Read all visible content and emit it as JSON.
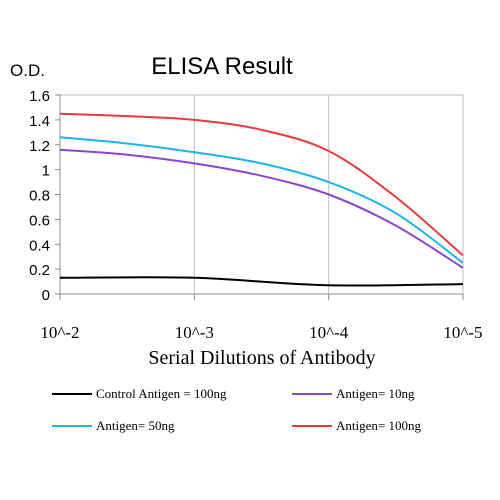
{
  "chart_data": {
    "type": "line",
    "title": "ELISA Result",
    "ylabel": "O.D.",
    "xlabel": "Serial Dilutions of Antibody",
    "x_tick_labels": [
      "10^-2",
      "10^-3",
      "10^-4",
      "10^-5"
    ],
    "y_tick_labels": [
      "0",
      "0.2",
      "0.4",
      "0.6",
      "0.8",
      "1",
      "1.2",
      "1.4",
      "1.6"
    ],
    "ylim": [
      0,
      1.6
    ],
    "grid": "vertical",
    "legend_position": "bottom",
    "series": [
      {
        "name": "Control Antigen = 100ng",
        "color": "#000000",
        "points": [
          [
            0,
            0.13
          ],
          [
            1,
            0.13
          ],
          [
            2,
            0.07
          ],
          [
            3,
            0.08
          ]
        ]
      },
      {
        "name": "Antigen= 10ng",
        "color": "#8e44cc",
        "points": [
          [
            0,
            1.16
          ],
          [
            0.5,
            1.12
          ],
          [
            1,
            1.05
          ],
          [
            1.5,
            0.95
          ],
          [
            2,
            0.8
          ],
          [
            2.5,
            0.55
          ],
          [
            3,
            0.21
          ]
        ]
      },
      {
        "name": "Antigen= 50ng",
        "color": "#1ab4f0",
        "points": [
          [
            0,
            1.26
          ],
          [
            0.5,
            1.21
          ],
          [
            1,
            1.14
          ],
          [
            1.5,
            1.05
          ],
          [
            2,
            0.9
          ],
          [
            2.5,
            0.65
          ],
          [
            3,
            0.25
          ]
        ]
      },
      {
        "name": "Antigen= 100ng",
        "color": "#e83a3a",
        "points": [
          [
            0,
            1.45
          ],
          [
            0.5,
            1.43
          ],
          [
            1,
            1.4
          ],
          [
            1.5,
            1.32
          ],
          [
            2,
            1.15
          ],
          [
            2.5,
            0.78
          ],
          [
            3,
            0.31
          ]
        ]
      }
    ]
  }
}
